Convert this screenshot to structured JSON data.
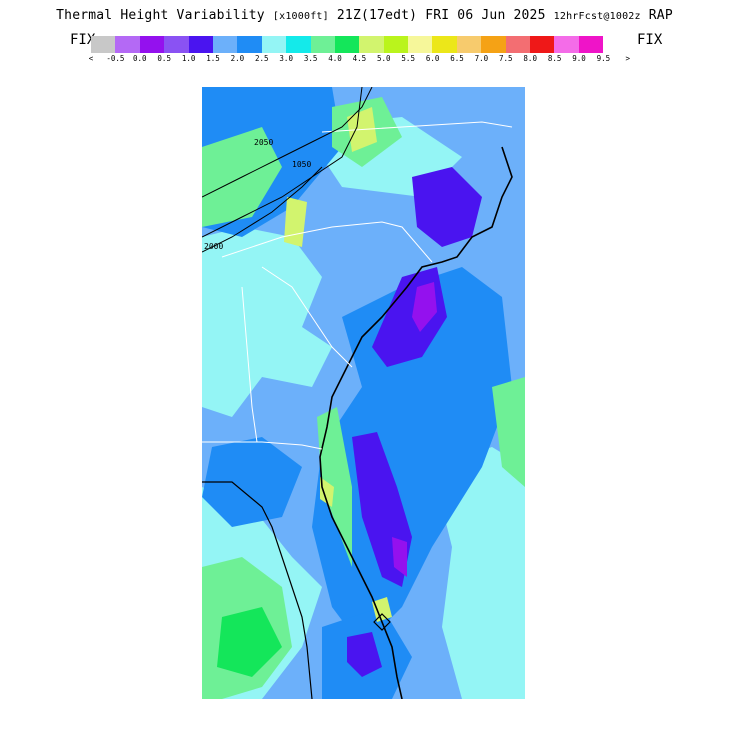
{
  "header": {
    "title_main": "Thermal Height Variability",
    "title_units": "[x1000ft]",
    "title_time": "21Z(17edt) FRI 06 Jun 2025",
    "title_fcst": "12hrFcst@1002z",
    "title_model": "RAP",
    "fix_left": "FIX",
    "fix_right": "FIX"
  },
  "legend": {
    "colors": [
      "#c8c8c8",
      "#b469f5",
      "#9411ee",
      "#8a52f3",
      "#4a14f0",
      "#6cb0fa",
      "#1f8cf5",
      "#94f5f5",
      "#14eaea",
      "#6ef096",
      "#14e65a",
      "#d2f46e",
      "#baf41c",
      "#f6f79a",
      "#ece719",
      "#f7cb6d",
      "#f5a215",
      "#f36e72",
      "#ef1818",
      "#f46ce8",
      "#ef14c8"
    ],
    "tick_labels": [
      "<",
      "-0.5",
      "0.0",
      "0.5",
      "1.0",
      "1.5",
      "2.0",
      "2.5",
      "3.0",
      "3.5",
      "4.0",
      "4.5",
      "5.0",
      "5.5",
      "6.0",
      "6.5",
      "7.0",
      "7.5",
      "8.0",
      "8.5",
      "9.0",
      "9.5",
      ">"
    ]
  },
  "map": {
    "contour_labels": [
      "2050",
      "1050",
      "2000"
    ]
  }
}
